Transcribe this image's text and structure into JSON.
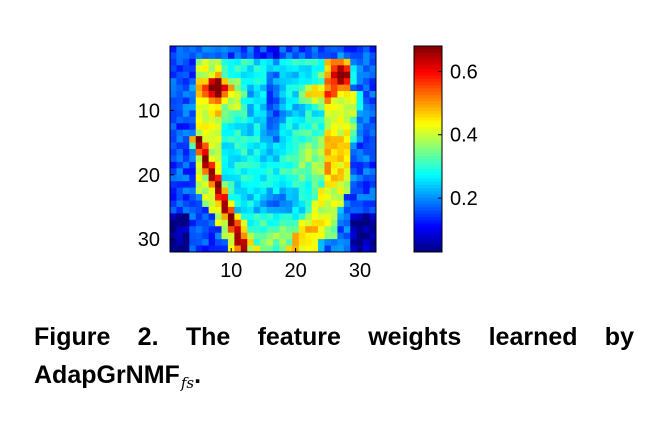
{
  "chart_data": {
    "type": "heatmap",
    "grid": [
      32,
      32
    ],
    "x_ticks": [
      "10",
      "20",
      "30"
    ],
    "x_tick_values": [
      10,
      20,
      30
    ],
    "y_ticks": [
      "10",
      "20",
      "30"
    ],
    "y_tick_values": [
      10,
      20,
      30
    ],
    "xlim": [
      0.5,
      32.5
    ],
    "ylim": [
      0.5,
      32.5
    ],
    "colorbar": {
      "ticks": [
        "0.2",
        "0.4",
        "0.6"
      ],
      "tick_values": [
        0.2,
        0.4,
        0.6
      ],
      "range": [
        0.03,
        0.68
      ],
      "colormap": "jet"
    }
  },
  "caption": {
    "main": "Figure 2. The feature weights learned by AdapGrNMF",
    "subscript": "fs",
    "end": "."
  }
}
